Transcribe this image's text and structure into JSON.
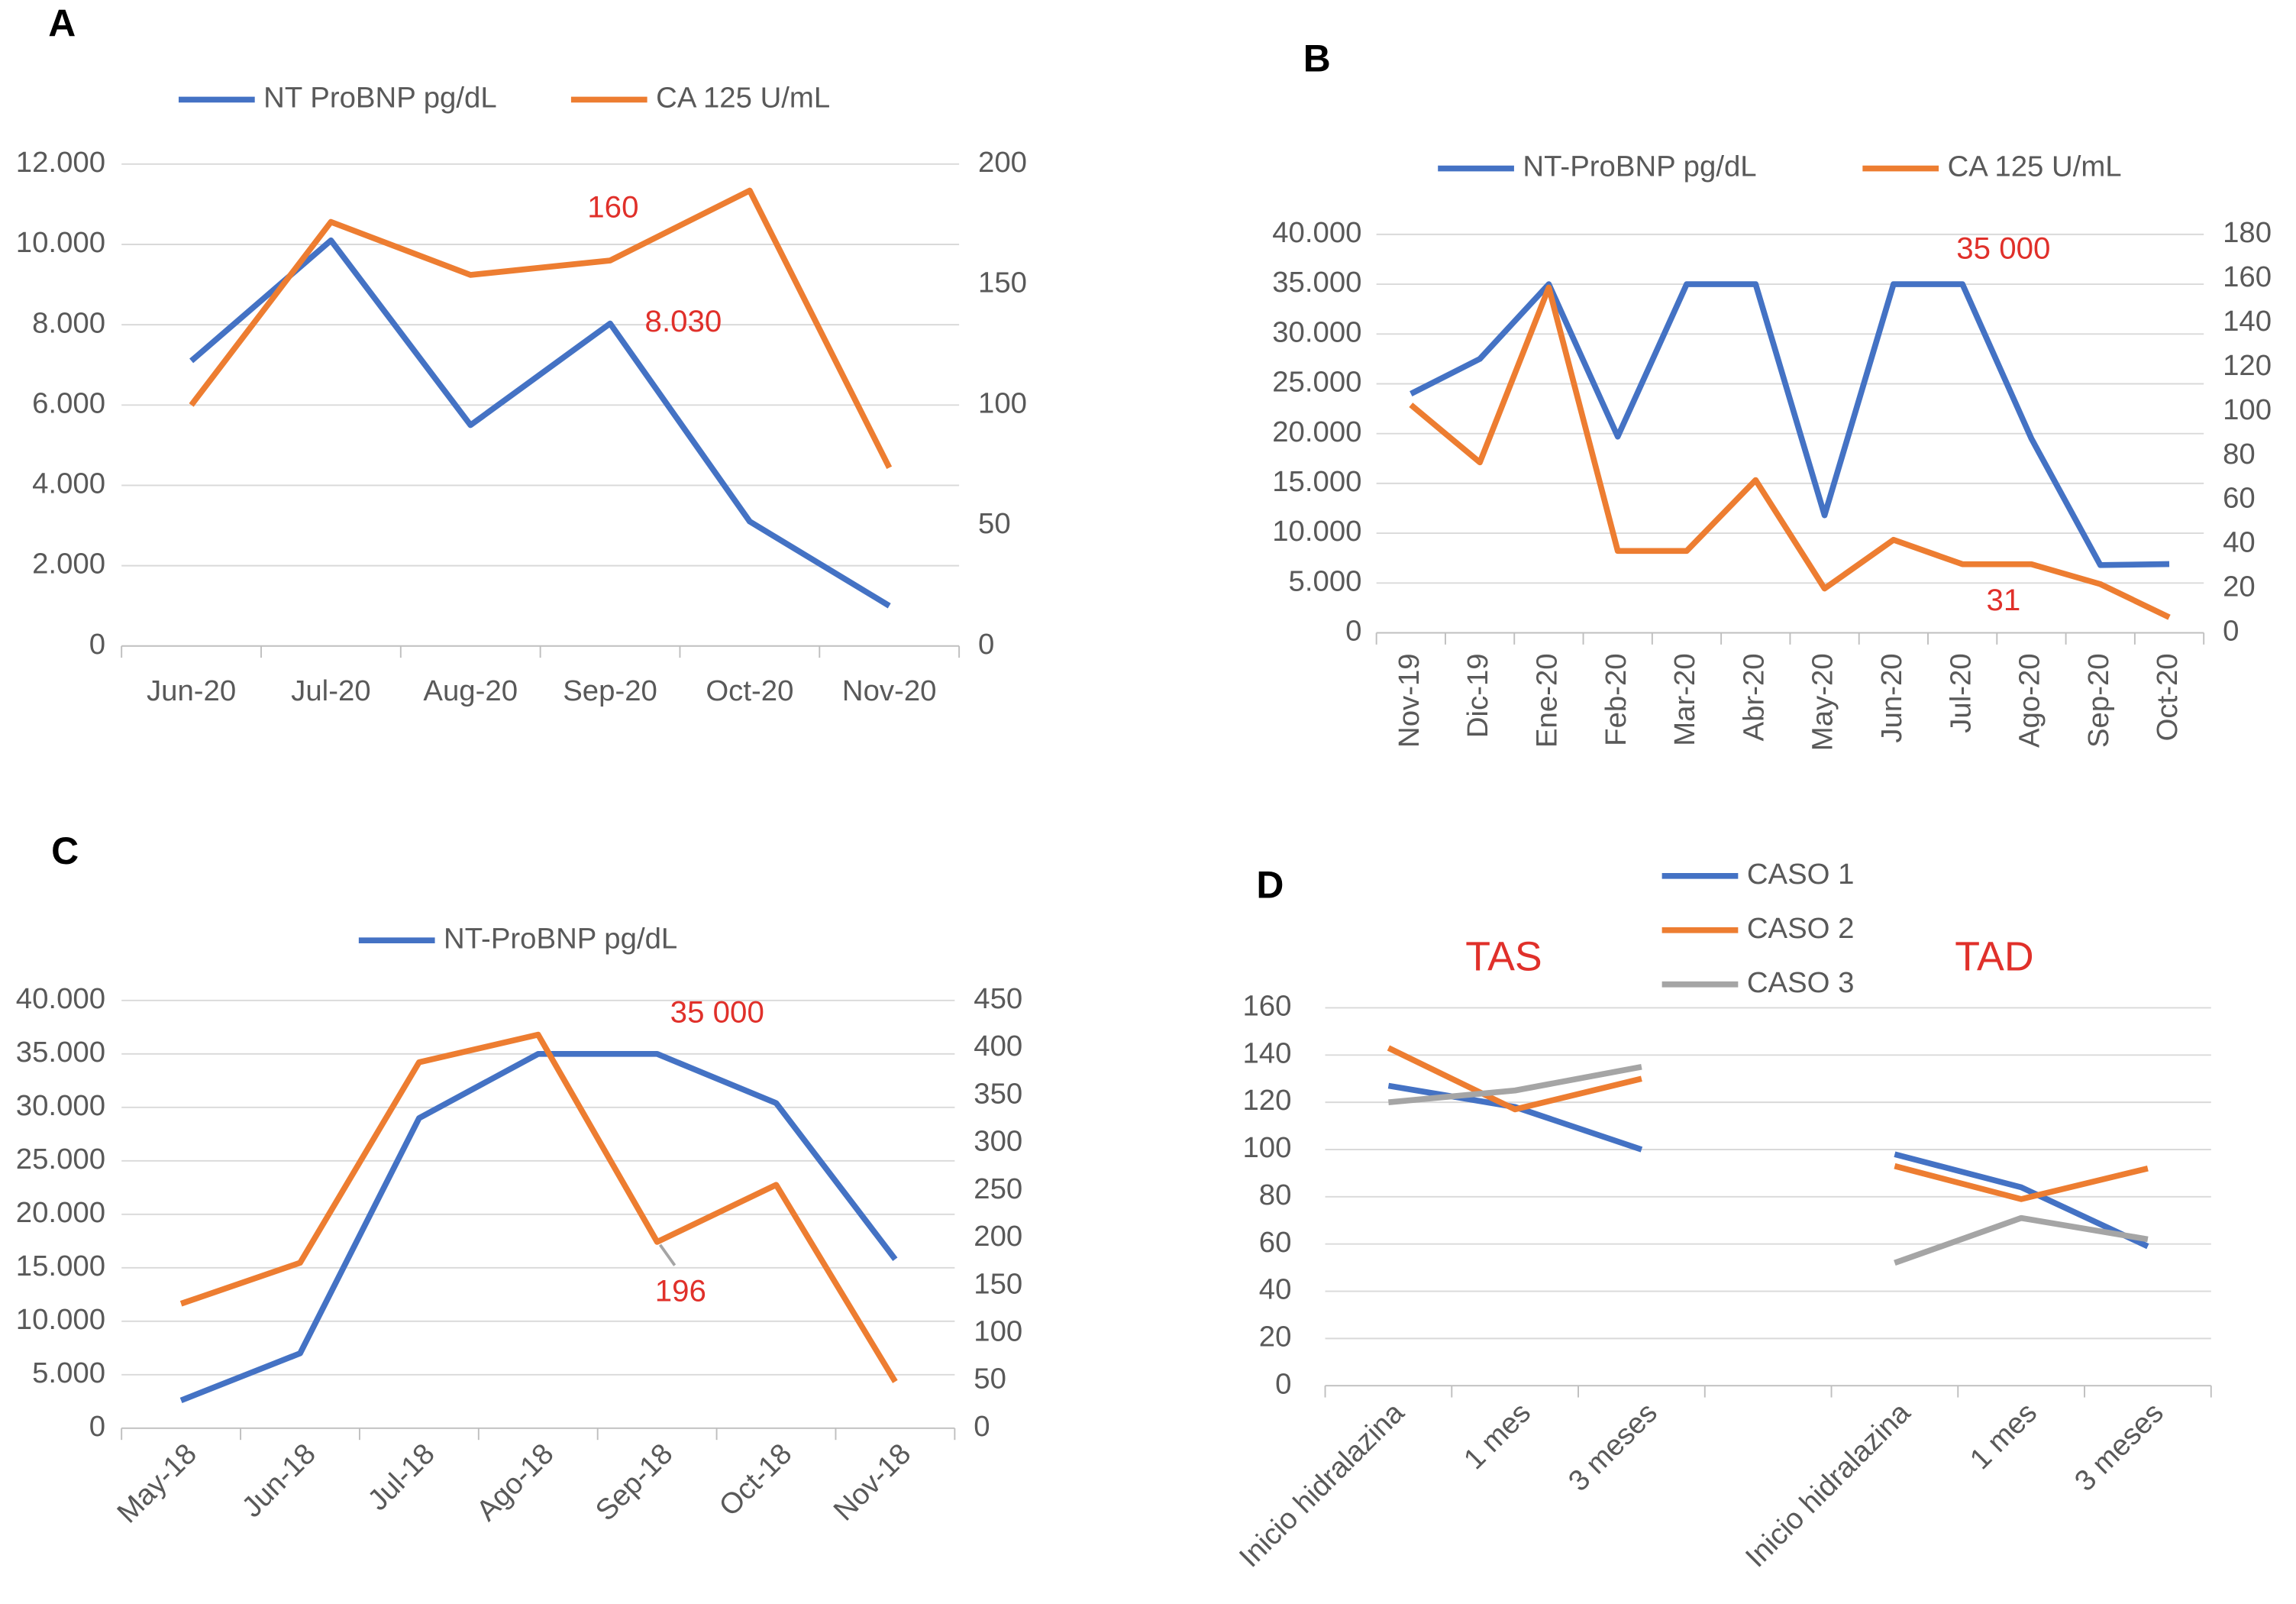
{
  "chart_data": [
    {
      "type": "line",
      "label": "A",
      "categories": [
        "Jun-20",
        "Jul-20",
        "Aug-20",
        "Sep-20",
        "Oct-20",
        "Nov-20"
      ],
      "series": [
        {
          "name": "NT ProBNP pg/dL",
          "color": "#4472c4",
          "values": [
            7100,
            10100,
            5500,
            8030,
            3100,
            1000
          ],
          "value_labels": [
            null,
            null,
            null,
            "8.030",
            null,
            null
          ]
        },
        {
          "name": "CA 125 U/mL",
          "color": "#ed7d31",
          "axis": "y2",
          "values": [
            100,
            176,
            154,
            160,
            189,
            74
          ],
          "value_labels": [
            null,
            null,
            null,
            "160",
            null,
            null
          ]
        }
      ],
      "ylim": [
        0,
        12000
      ],
      "yticks": [
        0,
        {
          "value": 2000,
          "label": "2.000"
        },
        {
          "value": 4000,
          "label": "4.000"
        },
        {
          "value": 6000,
          "label": "6.000"
        },
        {
          "value": 8000,
          "label": "8.000"
        },
        {
          "value": 10000,
          "label": "10.000"
        },
        {
          "value": 12000,
          "label": "12.000"
        }
      ],
      "y2lim": [
        0,
        200
      ],
      "y2ticks": [
        0,
        50,
        100,
        150,
        200
      ],
      "grid": true,
      "legend": "top"
    },
    {
      "type": "line",
      "label": "B",
      "categories": [
        "Nov-19",
        "Dic-19",
        "Ene-20",
        "Feb-20",
        "Mar-20",
        "Abr-20",
        "May-20",
        "Jun-20",
        "Jul-20",
        "Ago-20",
        "Sep-20",
        "Oct-20"
      ],
      "series": [
        {
          "name": "NT-ProBNP pg/dL",
          "color": "#4472c4",
          "values": [
            24000,
            27500,
            35000,
            19700,
            35000,
            35000,
            11800,
            35000,
            35000,
            19500,
            6800,
            6900
          ],
          "value_labels": [
            null,
            null,
            null,
            null,
            null,
            null,
            null,
            null,
            "35 000",
            null,
            null,
            null
          ]
        },
        {
          "name": "CA 125 U/mL",
          "color": "#ed7d31",
          "axis": "y2",
          "values": [
            103,
            77,
            156,
            37,
            37,
            69,
            20,
            42,
            31,
            31,
            22,
            7
          ],
          "value_labels": [
            null,
            null,
            null,
            null,
            null,
            null,
            null,
            null,
            "31",
            null,
            null,
            null
          ]
        }
      ],
      "ylim": [
        0,
        40000
      ],
      "yticks": [
        0,
        {
          "value": 5000,
          "label": "5.000"
        },
        {
          "value": 10000,
          "label": "10.000"
        },
        {
          "value": 15000,
          "label": "15.000"
        },
        {
          "value": 20000,
          "label": "20.000"
        },
        {
          "value": 25000,
          "label": "25.000"
        },
        {
          "value": 30000,
          "label": "30.000"
        },
        {
          "value": 35000,
          "label": "35.000"
        },
        {
          "value": 40000,
          "label": "40.000"
        }
      ],
      "y2lim": [
        0,
        180
      ],
      "y2ticks": [
        0,
        20,
        40,
        60,
        80,
        100,
        120,
        140,
        160,
        180
      ],
      "grid": true,
      "legend": "top"
    },
    {
      "type": "line",
      "label": "C",
      "categories": [
        "May-18",
        "Jun-18",
        "Jul-18",
        "Ago-18",
        "Sep-18",
        "Oct-18",
        "Nov-18"
      ],
      "series": [
        {
          "name": "NT-ProBNP pg/dL",
          "color": "#4472c4",
          "values": [
            2600,
            7000,
            29000,
            35000,
            35000,
            30400,
            15800
          ],
          "value_labels": [
            null,
            null,
            null,
            null,
            "35 000",
            null,
            null
          ]
        },
        {
          "color": "#ed7d31",
          "axis": "y2",
          "values": [
            131,
            174,
            385,
            414,
            196,
            256,
            49
          ],
          "value_labels": [
            null,
            null,
            null,
            null,
            "196",
            null,
            null
          ]
        }
      ],
      "ylim": [
        0,
        40000
      ],
      "yticks": [
        0,
        {
          "value": 5000,
          "label": "5.000"
        },
        {
          "value": 10000,
          "label": "10.000"
        },
        {
          "value": 15000,
          "label": "15.000"
        },
        {
          "value": 20000,
          "label": "20.000"
        },
        {
          "value": 25000,
          "label": "25.000"
        },
        {
          "value": 30000,
          "label": "30.000"
        },
        {
          "value": 35000,
          "label": "35.000"
        },
        {
          "value": 40000,
          "label": "40.000"
        }
      ],
      "y2lim": [
        0,
        450
      ],
      "y2ticks": [
        0,
        50,
        100,
        150,
        200,
        250,
        300,
        350,
        400,
        450
      ],
      "grid": true,
      "legend": "top"
    },
    {
      "type": "line",
      "label": "D",
      "categories": [
        "Inicio hidralazina",
        "1 mes",
        "3 meses",
        null,
        "Inicio hidralazina",
        "1 mes",
        "3 meses"
      ],
      "annotations": [
        "TAS",
        "TAD"
      ],
      "series": [
        {
          "name": "CASO 1",
          "color": "#4472c4",
          "values": [
            127,
            118,
            100,
            null,
            98,
            84,
            59
          ]
        },
        {
          "name": "CASO 2",
          "color": "#ed7d31",
          "values": [
            143,
            117,
            130,
            null,
            93,
            79,
            92
          ]
        },
        {
          "name": "CASO 3",
          "color": "#a5a5a5",
          "values": [
            120,
            125,
            135,
            null,
            52,
            71,
            62
          ]
        }
      ],
      "ylim": [
        0,
        160
      ],
      "yticks": [
        0,
        20,
        40,
        60,
        80,
        100,
        120,
        140,
        160
      ],
      "grid": true,
      "legend": "top"
    }
  ]
}
